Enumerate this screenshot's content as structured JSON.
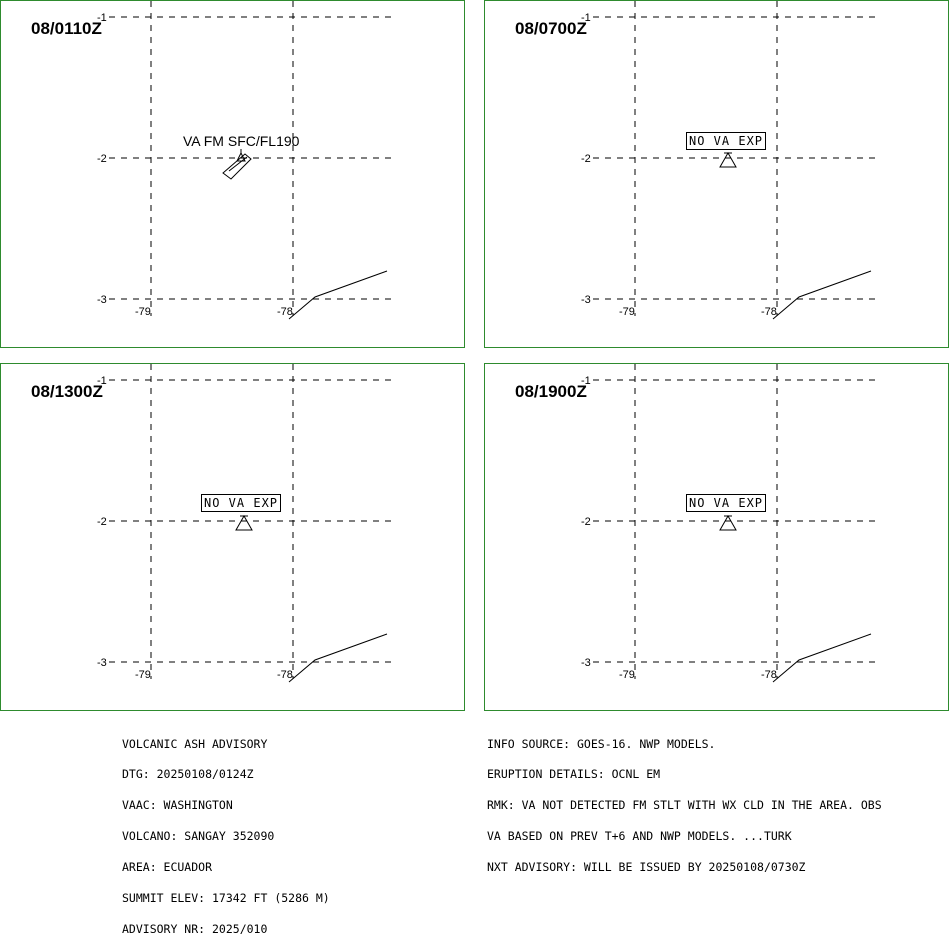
{
  "panels": [
    {
      "time": "08/0110Z",
      "va_text": "VA FM SFC/FL190",
      "nova_text": ""
    },
    {
      "time": "08/0700Z",
      "va_text": "",
      "nova_text": "NO VA EXP"
    },
    {
      "time": "08/1300Z",
      "va_text": "",
      "nova_text": "NO VA EXP"
    },
    {
      "time": "08/1900Z",
      "va_text": "",
      "nova_text": "NO VA EXP"
    }
  ],
  "ticks": {
    "lat_top": "-1",
    "lat_mid": "-2",
    "lat_bot": "-3",
    "lon_left": "-79",
    "lon_right": "-78"
  },
  "advisory_left": [
    "VOLCANIC ASH ADVISORY",
    "DTG: 20250108/0124Z",
    "VAAC: WASHINGTON",
    "VOLCANO: SANGAY 352090",
    "AREA: ECUADOR",
    "SUMMIT ELEV: 17342 FT (5286 M)",
    "ADVISORY NR: 2025/010"
  ],
  "advisory_right": [
    "INFO SOURCE: GOES-16. NWP MODELS.",
    "ERUPTION DETAILS: OCNL EM",
    "RMK: VA NOT DETECTED FM STLT WITH WX CLD IN THE AREA. OBS",
    "VA BASED ON PREV T+6 AND NWP MODELS. ...TURK",
    "NXT ADVISORY: WILL BE ISSUED BY 20250108/0730Z"
  ],
  "colors": {
    "panel_border": "#2e8b2e",
    "lines": "#000000"
  }
}
